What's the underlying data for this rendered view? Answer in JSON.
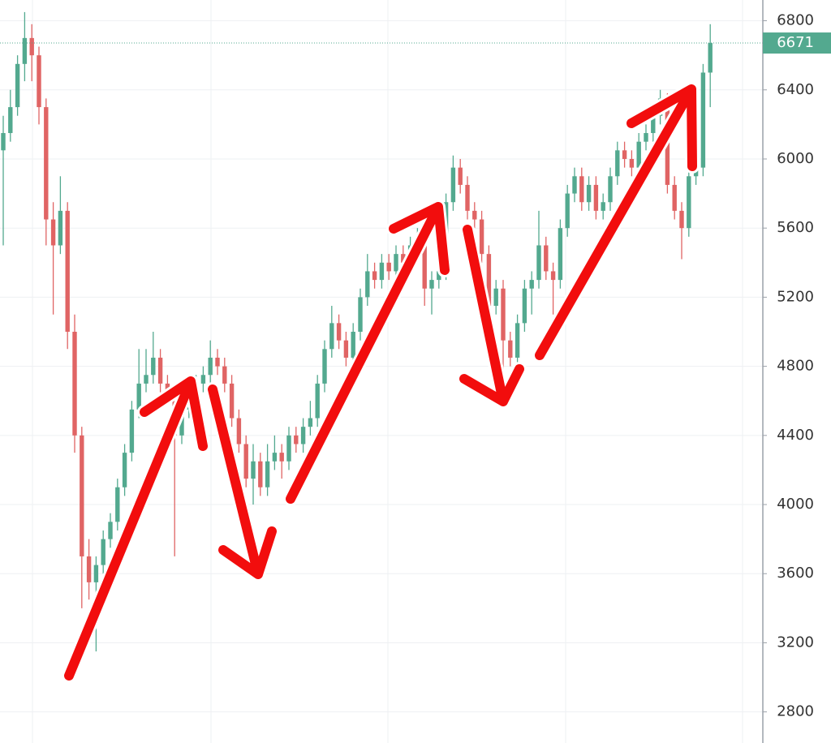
{
  "chart_data": {
    "type": "candlestick",
    "up_color": "#53a98f",
    "down_color": "#e06464",
    "ylim": [
      2620,
      6920
    ],
    "yticks": [
      2800,
      3200,
      3600,
      4000,
      4400,
      4800,
      5200,
      5600,
      6000,
      6400,
      6800
    ],
    "grid": true,
    "open": [
      6050,
      6150,
      6300,
      6550,
      6700,
      6600,
      6300,
      5650,
      5500,
      5700,
      5000,
      4400,
      3700,
      3550,
      3650,
      3800,
      3900,
      4100,
      4300,
      4550,
      4700,
      4750,
      4850,
      4700,
      4650,
      4400,
      4550,
      4650,
      4700,
      4750,
      4850,
      4800,
      4700,
      4500,
      4350,
      4150,
      4250,
      4100,
      4250,
      4300,
      4250,
      4400,
      4350,
      4450,
      4500,
      4700,
      4900,
      5050,
      4950,
      4850,
      5000,
      5200,
      5350,
      5300,
      5400,
      5350,
      5450,
      5400,
      5500,
      5550,
      5250,
      5300,
      5350,
      5750,
      5950,
      5850,
      5700,
      5650,
      5450,
      5150,
      5250,
      4950,
      4850,
      5050,
      5250,
      5300,
      5500,
      5350,
      5300,
      5600,
      5800,
      5900,
      5750,
      5850,
      5700,
      5750,
      5900,
      6050,
      6000,
      5950,
      6100,
      6150,
      6250,
      6350,
      5850,
      5700,
      5600,
      5900,
      5950,
      6500
    ],
    "high": [
      6250,
      6400,
      6600,
      6850,
      6780,
      6650,
      6350,
      5750,
      5900,
      5750,
      5100,
      4450,
      3800,
      3700,
      3850,
      3950,
      4150,
      4350,
      4600,
      4900,
      4900,
      5000,
      4900,
      4750,
      4700,
      4600,
      4700,
      4750,
      4800,
      4950,
      4900,
      4850,
      4750,
      4550,
      4400,
      4350,
      4300,
      4350,
      4400,
      4350,
      4450,
      4450,
      4500,
      4600,
      4750,
      4950,
      5150,
      5100,
      5000,
      5050,
      5250,
      5450,
      5400,
      5450,
      5450,
      5500,
      5500,
      5550,
      5600,
      5600,
      5350,
      5400,
      5800,
      6020,
      6000,
      5900,
      5750,
      5700,
      5500,
      5300,
      5300,
      5000,
      5100,
      5300,
      5350,
      5700,
      5550,
      5400,
      5650,
      5850,
      5950,
      5950,
      5900,
      5900,
      5800,
      5950,
      6100,
      6100,
      6050,
      6150,
      6200,
      6300,
      6400,
      6380,
      5900,
      5750,
      5950,
      6000,
      6550,
      6780
    ],
    "low": [
      5500,
      6100,
      6250,
      6450,
      6450,
      6200,
      5500,
      5100,
      5450,
      4900,
      4300,
      3400,
      3450,
      3150,
      3600,
      3750,
      3850,
      4050,
      4250,
      4500,
      4650,
      4700,
      4650,
      4600,
      3700,
      4350,
      4500,
      4600,
      4650,
      4700,
      4750,
      4650,
      4450,
      4300,
      4100,
      4000,
      4050,
      4050,
      4200,
      4150,
      4200,
      4300,
      4300,
      4400,
      4450,
      4650,
      4850,
      4900,
      4800,
      4800,
      4950,
      5150,
      5250,
      5250,
      5300,
      5300,
      5350,
      5350,
      5450,
      5150,
      5100,
      5250,
      5300,
      5700,
      5800,
      5650,
      5600,
      5400,
      5100,
      5100,
      4750,
      4800,
      4800,
      5000,
      5100,
      5250,
      5300,
      5100,
      5250,
      5550,
      5750,
      5700,
      5700,
      5650,
      5650,
      5700,
      5850,
      5950,
      5900,
      5900,
      6050,
      6100,
      6200,
      5800,
      5650,
      5420,
      5550,
      5850,
      5900,
      6300
    ],
    "close": [
      6150,
      6300,
      6550,
      6700,
      6600,
      6300,
      5650,
      5500,
      5700,
      5000,
      4400,
      3700,
      3550,
      3650,
      3800,
      3900,
      4100,
      4300,
      4550,
      4700,
      4750,
      4850,
      4700,
      4650,
      4400,
      4550,
      4650,
      4700,
      4750,
      4850,
      4800,
      4700,
      4500,
      4350,
      4150,
      4250,
      4100,
      4250,
      4300,
      4250,
      4400,
      4350,
      4450,
      4500,
      4700,
      4900,
      5050,
      4950,
      4850,
      5000,
      5200,
      5350,
      5300,
      5400,
      5350,
      5450,
      5400,
      5500,
      5550,
      5250,
      5300,
      5350,
      5750,
      5950,
      5850,
      5700,
      5650,
      5450,
      5150,
      5250,
      4950,
      4850,
      5050,
      5250,
      5300,
      5500,
      5350,
      5300,
      5600,
      5800,
      5900,
      5750,
      5850,
      5700,
      5750,
      5900,
      6050,
      6000,
      5950,
      6100,
      6150,
      6250,
      6350,
      5850,
      5700,
      5600,
      5900,
      5950,
      6500,
      6671
    ]
  }
}
